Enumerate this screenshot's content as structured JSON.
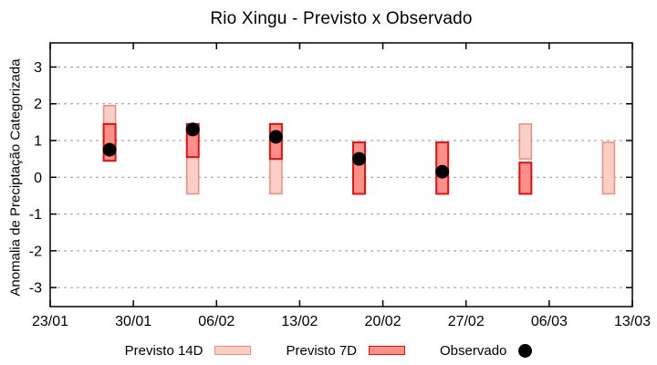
{
  "chart_data": {
    "type": "range-bar+scatter",
    "title": "Rio Xingu - Previsto x Observado",
    "xlabel": "",
    "ylabel": "Anomalia de Preciptação Categorizada",
    "ylim": [
      -3.55,
      3.65
    ],
    "x_span_days": 49,
    "grid": "horizontal-dashed",
    "legend_position": "bottom-center",
    "yticks": [
      {
        "label": "3",
        "value": 3
      },
      {
        "label": "2",
        "value": 2
      },
      {
        "label": "1",
        "value": 1
      },
      {
        "label": "0",
        "value": 0
      },
      {
        "label": "-1",
        "value": -1
      },
      {
        "label": "-2",
        "value": -2
      },
      {
        "label": "-3",
        "value": -3
      }
    ],
    "xticks": [
      {
        "label": "23/01",
        "day": 0
      },
      {
        "label": "30/01",
        "day": 7
      },
      {
        "label": "06/02",
        "day": 14
      },
      {
        "label": "13/02",
        "day": 21
      },
      {
        "label": "20/02",
        "day": 28
      },
      {
        "label": "27/02",
        "day": 35
      },
      {
        "label": "06/03",
        "day": 42
      },
      {
        "label": "13/03",
        "day": 49
      }
    ],
    "legend": [
      {
        "label": "Previsto 14D",
        "swatch": "box",
        "fill": "#f9cfc7",
        "border": "#ef8b7b"
      },
      {
        "label": "Previsto 7D",
        "swatch": "box",
        "fill": "#fc9088",
        "border": "#e41010"
      },
      {
        "label": "Observado",
        "swatch": "dot",
        "fill": "#000000"
      }
    ],
    "bar_dates": [
      "28/01",
      "04/02",
      "11/02",
      "18/02",
      "25/02",
      "04/03",
      "11/03"
    ],
    "bar_days": [
      5,
      12,
      19,
      26,
      33,
      40,
      47
    ],
    "series": [
      {
        "name": "Previsto 14D",
        "type": "range-bar",
        "ranges": [
          [
            0.45,
            1.95
          ],
          [
            -0.45,
            0.55
          ],
          [
            -0.45,
            0.5
          ],
          null,
          null,
          [
            0.5,
            1.45
          ],
          [
            -0.45,
            0.95
          ]
        ]
      },
      {
        "name": "Previsto 7D",
        "type": "range-bar",
        "ranges": [
          [
            0.45,
            1.45
          ],
          [
            0.55,
            1.45
          ],
          [
            0.5,
            1.45
          ],
          [
            -0.45,
            0.95
          ],
          [
            -0.45,
            0.95
          ],
          [
            -0.45,
            0.4
          ],
          null
        ]
      },
      {
        "name": "Observado",
        "type": "scatter",
        "values": [
          0.75,
          1.3,
          1.1,
          0.5,
          0.15,
          null,
          null
        ]
      }
    ],
    "colors": {
      "grid": "#999999",
      "axis": "#000000",
      "background": "#ffffff"
    }
  }
}
